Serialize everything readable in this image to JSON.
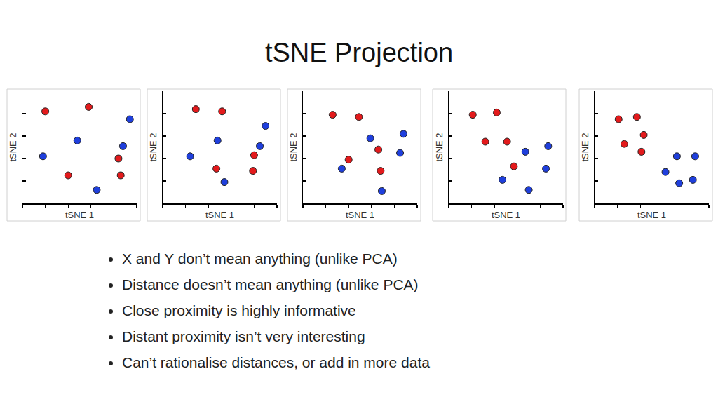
{
  "slide": {
    "title": "tSNE Projection",
    "bullets": [
      "X and Y don’t mean anything (unlike PCA)",
      "Distance doesn’t mean anything (unlike PCA)",
      "Close proximity is highly informative",
      "Distant proximity isn’t very interesting",
      "Can’t rationalise distances, or add in more data"
    ]
  },
  "chart_data": [
    {
      "type": "scatter",
      "x_label": "tSNE 1",
      "y_label": "tSNE 2",
      "xlim": [
        0,
        5
      ],
      "ylim": [
        0,
        5
      ],
      "xticks": [
        0,
        1,
        2,
        3,
        4,
        5
      ],
      "yticks": [
        0,
        1,
        2,
        3,
        4,
        5
      ],
      "tick_labels": false,
      "grid": false,
      "marker": "circle",
      "series": [
        {
          "color": "#e31a1c",
          "x": [
            1.0,
            2.9,
            2.0,
            4.2,
            4.3
          ],
          "y": [
            4.1,
            4.3,
            1.25,
            2.0,
            1.25
          ]
        },
        {
          "color": "#1f3fdc",
          "x": [
            0.9,
            2.4,
            4.7,
            4.4,
            3.25
          ],
          "y": [
            2.1,
            2.8,
            3.75,
            2.55,
            0.6
          ]
        }
      ]
    },
    {
      "type": "scatter",
      "x_label": "tSNE 1",
      "y_label": "tSNE 2",
      "xlim": [
        0,
        5
      ],
      "ylim": [
        0,
        5
      ],
      "xticks": [
        0,
        1,
        2,
        3,
        4,
        5
      ],
      "yticks": [
        0,
        1,
        2,
        3,
        4,
        5
      ],
      "tick_labels": false,
      "grid": false,
      "marker": "circle",
      "series": [
        {
          "color": "#e31a1c",
          "x": [
            1.45,
            2.6,
            2.35,
            4.0,
            3.95
          ],
          "y": [
            4.2,
            4.1,
            1.55,
            2.15,
            1.45
          ]
        },
        {
          "color": "#1f3fdc",
          "x": [
            1.2,
            2.4,
            4.5,
            4.25,
            2.7
          ],
          "y": [
            2.1,
            2.8,
            3.45,
            2.55,
            0.95
          ]
        }
      ]
    },
    {
      "type": "scatter",
      "x_label": "tSNE 1",
      "y_label": "tSNE 2",
      "xlim": [
        0,
        5
      ],
      "ylim": [
        0,
        5
      ],
      "xticks": [
        0,
        1,
        2,
        3,
        4,
        5
      ],
      "yticks": [
        0,
        1,
        2,
        3,
        4,
        5
      ],
      "tick_labels": false,
      "grid": false,
      "marker": "circle",
      "series": [
        {
          "color": "#e31a1c",
          "x": [
            1.3,
            2.45,
            3.3,
            2.0,
            3.4
          ],
          "y": [
            3.95,
            3.85,
            2.4,
            1.95,
            1.45
          ]
        },
        {
          "color": "#1f3fdc",
          "x": [
            2.95,
            4.4,
            1.7,
            4.25,
            3.45
          ],
          "y": [
            2.9,
            3.1,
            1.55,
            2.25,
            0.55
          ]
        }
      ]
    },
    {
      "type": "scatter",
      "x_label": "tSNE 1",
      "y_label": "tSNE 2",
      "xlim": [
        0,
        5
      ],
      "ylim": [
        0,
        5
      ],
      "xticks": [
        0,
        1,
        2,
        3,
        4,
        5
      ],
      "yticks": [
        0,
        1,
        2,
        3,
        4,
        5
      ],
      "tick_labels": false,
      "grid": false,
      "marker": "circle",
      "series": [
        {
          "color": "#e31a1c",
          "x": [
            1.05,
            2.1,
            1.6,
            2.55,
            2.85
          ],
          "y": [
            3.95,
            4.05,
            2.75,
            2.75,
            1.65
          ]
        },
        {
          "color": "#1f3fdc",
          "x": [
            3.35,
            4.35,
            2.35,
            3.5,
            4.25
          ],
          "y": [
            2.3,
            2.55,
            1.05,
            0.6,
            1.55
          ]
        }
      ]
    },
    {
      "type": "scatter",
      "x_label": "tSNE 1",
      "y_label": "tSNE 2",
      "xlim": [
        0,
        5
      ],
      "ylim": [
        0,
        5
      ],
      "xticks": [
        0,
        1,
        2,
        3,
        4,
        5
      ],
      "yticks": [
        0,
        1,
        2,
        3,
        4,
        5
      ],
      "tick_labels": false,
      "grid": false,
      "marker": "circle",
      "series": [
        {
          "color": "#e31a1c",
          "x": [
            1.05,
            1.85,
            2.15,
            1.3,
            2.05
          ],
          "y": [
            3.75,
            3.85,
            3.05,
            2.65,
            2.3
          ]
        },
        {
          "color": "#1f3fdc",
          "x": [
            3.1,
            3.6,
            4.4,
            3.7,
            4.3
          ],
          "y": [
            1.4,
            2.1,
            2.1,
            0.9,
            1.05
          ]
        }
      ]
    }
  ]
}
